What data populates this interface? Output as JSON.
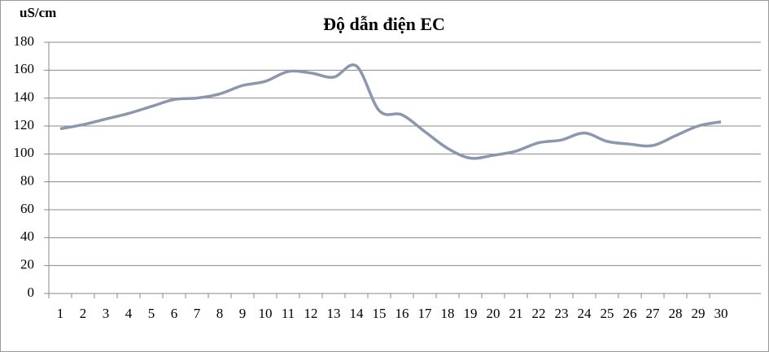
{
  "chart_data": {
    "type": "line",
    "title": "Độ dẫn  điện EC",
    "y_label": "uS/cm",
    "categories": [
      "1",
      "2",
      "3",
      "4",
      "5",
      "6",
      "7",
      "8",
      "9",
      "10",
      "11",
      "12",
      "13",
      "14",
      "15",
      "16",
      "17",
      "18",
      "19",
      "20",
      "21",
      "22",
      "23",
      "24",
      "25",
      "26",
      "27",
      "28",
      "29",
      "30"
    ],
    "series": [
      {
        "name": "EC",
        "color": "#8b97ad",
        "values": [
          118,
          121,
          125,
          129,
          134,
          139,
          140,
          143,
          149,
          152,
          159,
          158,
          155,
          163,
          131,
          128,
          116,
          104,
          97,
          99,
          102,
          108,
          110,
          115,
          109,
          107,
          106,
          113,
          120,
          123
        ]
      }
    ],
    "ylim": [
      0,
      180
    ],
    "yticks": [
      0,
      20,
      40,
      60,
      80,
      100,
      120,
      140,
      160,
      180
    ],
    "grid": true,
    "legend": false
  }
}
